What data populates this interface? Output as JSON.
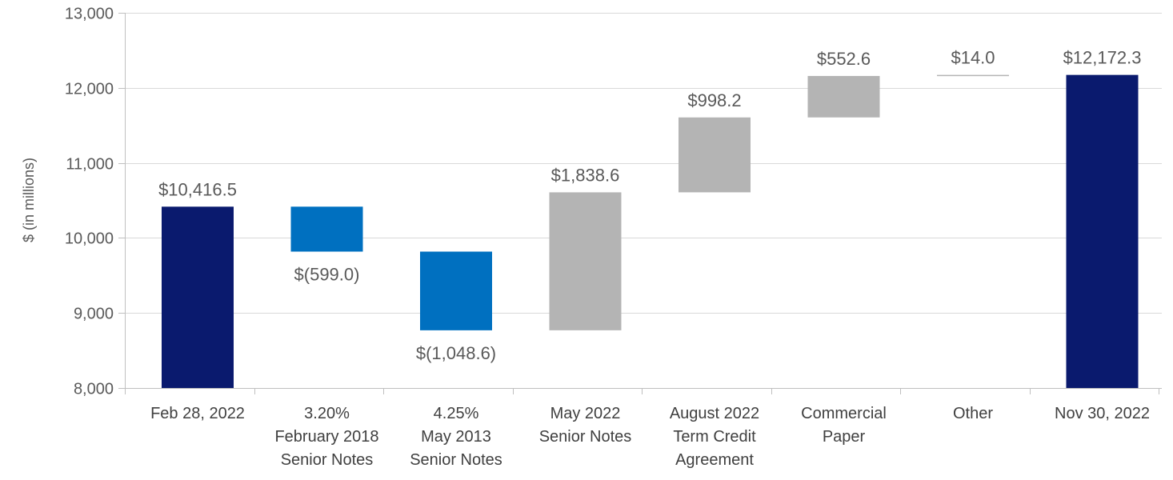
{
  "chart_data": {
    "type": "waterfall",
    "title": "",
    "xlabel": "",
    "ylabel": "$ (in millions)",
    "ylim": [
      8000,
      13000
    ],
    "yticks": [
      8000,
      9000,
      10000,
      11000,
      12000,
      13000
    ],
    "ytick_labels": [
      "8,000",
      "9,000",
      "10,000",
      "11,000",
      "12,000",
      "13,000"
    ],
    "grid": true,
    "colors": {
      "total": "#0A1A6E",
      "decrease": "#0070C0",
      "increase": "#B4B4B4",
      "gridline": "#D9D9D9",
      "axis": "#BFBFBF"
    },
    "bars": [
      {
        "category": [
          "Feb 28, 2022"
        ],
        "kind": "total",
        "value": 10416.5,
        "label": "$10,416.5"
      },
      {
        "category": [
          "3.20%",
          "February 2018",
          "Senior Notes"
        ],
        "kind": "decrease",
        "value": -599.0,
        "label": "$(599.0)"
      },
      {
        "category": [
          "4.25%",
          "May 2013",
          "Senior Notes"
        ],
        "kind": "decrease",
        "value": -1048.6,
        "label": "$(1,048.6)"
      },
      {
        "category": [
          "May 2022",
          "Senior Notes"
        ],
        "kind": "increase",
        "value": 1838.6,
        "label": "$1,838.6"
      },
      {
        "category": [
          "August 2022",
          "Term Credit",
          "Agreement"
        ],
        "kind": "increase",
        "value": 998.2,
        "label": "$998.2"
      },
      {
        "category": [
          "Commercial",
          "Paper"
        ],
        "kind": "increase",
        "value": 552.6,
        "label": "$552.6"
      },
      {
        "category": [
          "Other"
        ],
        "kind": "increase",
        "value": 14.0,
        "label": "$14.0"
      },
      {
        "category": [
          "Nov 30, 2022"
        ],
        "kind": "total",
        "value": 12172.3,
        "label": "$12,172.3"
      }
    ]
  }
}
